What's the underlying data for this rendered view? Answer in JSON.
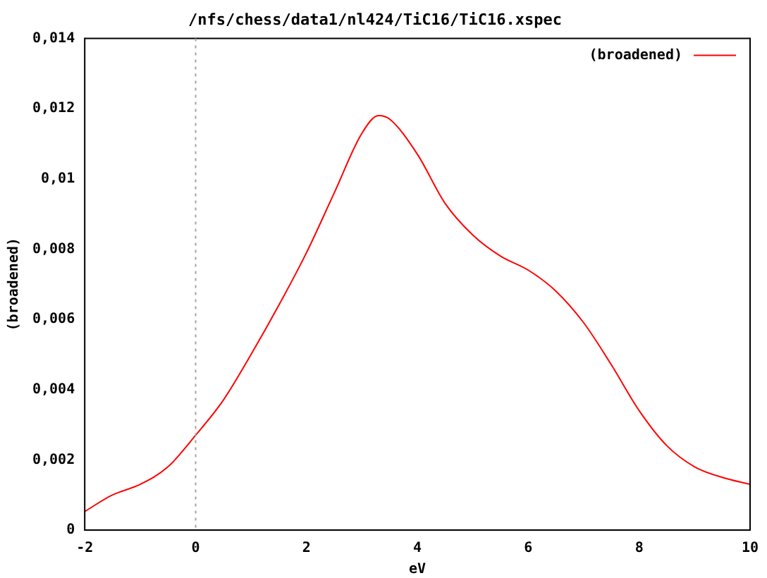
{
  "chart_data": {
    "type": "line",
    "title": "/nfs/chess/data1/nl424/TiC16/TiC16.xspec",
    "xlabel": "eV",
    "ylabel": "(broadened)",
    "x": [
      -2,
      -1.5,
      -1,
      -0.5,
      0,
      0.5,
      1,
      1.5,
      2,
      2.5,
      3,
      3.3,
      3.5,
      4,
      4.5,
      5,
      5.5,
      6,
      6.5,
      7,
      7.5,
      8,
      8.5,
      9,
      9.5,
      10
    ],
    "series": [
      {
        "name": "(broadened)",
        "color": "#ff0000",
        "values": [
          0.00053,
          0.001,
          0.0013,
          0.0018,
          0.0027,
          0.0037,
          0.005,
          0.0064,
          0.0079,
          0.0096,
          0.0113,
          0.0118,
          0.0117,
          0.0107,
          0.0093,
          0.0084,
          0.0078,
          0.0074,
          0.0068,
          0.0059,
          0.0047,
          0.0034,
          0.0024,
          0.0018,
          0.0015,
          0.0013
        ]
      }
    ],
    "xlim": [
      -2,
      10
    ],
    "xticks": [
      -2,
      0,
      2,
      4,
      6,
      8,
      10
    ],
    "ylim": [
      0,
      0.014
    ],
    "yticks": [
      0,
      {
        "value": 0.002,
        "label": "0,002"
      },
      {
        "value": 0.004,
        "label": "0,004"
      },
      {
        "value": 0.006,
        "label": "0,006"
      },
      {
        "value": 0.008,
        "label": "0,008"
      },
      {
        "value": 0.01,
        "label": "0,01"
      },
      {
        "value": 0.012,
        "label": "0,012"
      },
      {
        "value": 0.014,
        "label": "0,014"
      }
    ],
    "ref_lines": [
      {
        "axis": "x",
        "value": 0,
        "color": "#a0a0a0",
        "line_style": "dotted"
      }
    ],
    "grid": false,
    "legend": "top right",
    "marker": "none",
    "line_style": "solid"
  }
}
